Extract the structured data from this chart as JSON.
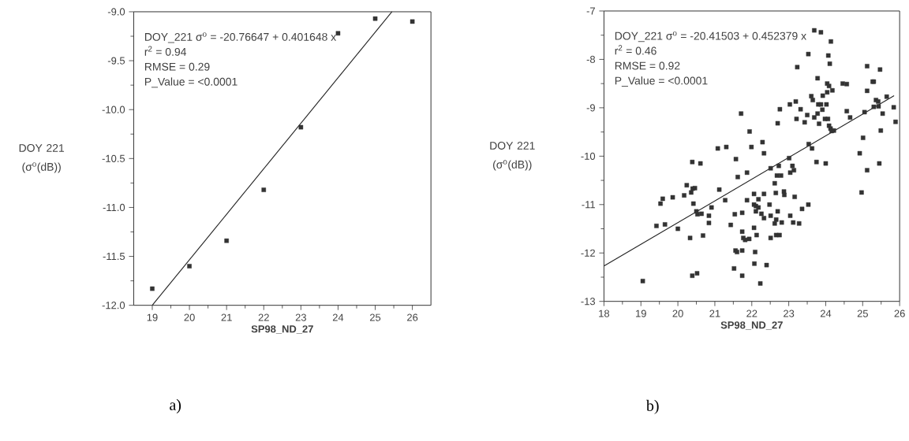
{
  "chart_data": [
    {
      "type": "scatter",
      "title": "a)",
      "xlabel": "SP98_ND_27",
      "ylabel": "DOY 221 (σ$^{o}$(dB))",
      "xlim": [
        18.5,
        26.5
      ],
      "ylim": [
        -12.0,
        -9.0
      ],
      "xticks": [
        19,
        20,
        21,
        22,
        23,
        24,
        25,
        26
      ],
      "yticks": [
        {
          "value": -12.0,
          "label": "-12.0"
        },
        {
          "value": -11.5,
          "label": "-11.5"
        },
        {
          "value": -11.0,
          "label": "-11.0"
        },
        {
          "value": -10.5,
          "label": "-10.5"
        },
        {
          "value": -10.0,
          "label": "-10.0"
        },
        {
          "value": -9.5,
          "label": "-9.5"
        },
        {
          "value": -9.0,
          "label": "-9.0"
        }
      ],
      "annotations": [
        "DOY_221 σ$^{o}$ = -20.76647 + 0.401648  x",
        "r$^{2}$ = 0.94",
        "RMSE = 0.29",
        "P_Value = <0.0001"
      ],
      "series": [
        {
          "marker": "square",
          "color": "#333333",
          "x": [
            19,
            20,
            21,
            22,
            23,
            24,
            25,
            26
          ],
          "values": [
            -11.83,
            -11.6,
            -11.34,
            -10.82,
            -10.18,
            -9.22,
            -9.07,
            -9.1
          ]
        },
        {
          "type": "line",
          "color": "#222222",
          "x": [
            19,
            25.45
          ],
          "values": [
            -12.0,
            -9.0
          ]
        }
      ]
    },
    {
      "type": "scatter",
      "title": "b)",
      "xlabel": "SP98_ND_27",
      "ylabel": "DOY 221 (σ$^{o}$(dB))",
      "xlim": [
        18,
        26
      ],
      "ylim": [
        -13,
        -7
      ],
      "xticks": [
        18,
        19,
        20,
        21,
        22,
        23,
        24,
        25,
        26
      ],
      "yticks": [
        -13,
        -12,
        -11,
        -10,
        -9,
        -8,
        -7
      ],
      "annotations": [
        "DOY_221 σ$^{o}$ = -20.41503 + 0.452379  x",
        "r$^{2}$ = 0.46",
        "RMSE = 0.92",
        "P_Value = <0.0001"
      ],
      "series": [
        {
          "marker": "square",
          "color": "#333333",
          "x": [
            19.05,
            19.42,
            19.53,
            19.59,
            19.65,
            19.86,
            20.0,
            20.17,
            20.24,
            20.33,
            20.36,
            20.39,
            20.39,
            20.4,
            20.42,
            20.46,
            20.5,
            20.52,
            20.53,
            20.61,
            20.64,
            20.68,
            20.84,
            20.84,
            20.91,
            21.08,
            21.12,
            21.28,
            21.31,
            21.43,
            21.52,
            21.54,
            21.56,
            21.57,
            21.6,
            21.62,
            21.71,
            21.74,
            21.74,
            21.77,
            21.74,
            21.74,
            21.82,
            21.87,
            21.87,
            21.93,
            21.94,
            21.99,
            22.06,
            22.06,
            22.06,
            22.07,
            22.09,
            22.11,
            22.11,
            22.13,
            22.18,
            22.18,
            22.23,
            22.26,
            22.29,
            22.33,
            22.33,
            22.33,
            22.4,
            22.48,
            22.51,
            22.51,
            22.51,
            22.62,
            22.62,
            22.65,
            22.66,
            22.66,
            22.68,
            22.7,
            22.7,
            22.73,
            22.75,
            22.76,
            22.79,
            22.81,
            22.87,
            22.88,
            23.01,
            23.03,
            23.04,
            23.04,
            23.1,
            23.12,
            23.14,
            23.16,
            23.19,
            23.21,
            23.23,
            23.28,
            23.32,
            23.36,
            23.43,
            23.5,
            23.53,
            23.53,
            23.54,
            23.61,
            23.63,
            23.65,
            23.69,
            23.69,
            23.75,
            23.78,
            23.78,
            23.8,
            23.82,
            23.87,
            23.87,
            23.91,
            23.92,
            23.98,
            24.0,
            24.02,
            24.04,
            24.04,
            24.06,
            24.07,
            24.09,
            24.09,
            24.11,
            24.13,
            24.14,
            24.16,
            24.18,
            24.22,
            24.46,
            24.57,
            24.57,
            24.66,
            24.92,
            24.97,
            25.01,
            25.05,
            25.12,
            25.12,
            25.12,
            25.27,
            25.3,
            25.3,
            25.36,
            25.42,
            25.43,
            25.45,
            25.47,
            25.49,
            25.54,
            25.65,
            25.84,
            25.89
          ],
          "values": [
            -12.58,
            -11.44,
            -10.98,
            -10.88,
            -11.41,
            -10.85,
            -11.5,
            -10.81,
            -10.6,
            -11.69,
            -10.75,
            -12.47,
            -10.12,
            -10.67,
            -10.98,
            -10.66,
            -11.14,
            -12.42,
            -11.2,
            -10.15,
            -11.19,
            -11.64,
            -11.23,
            -11.38,
            -11.06,
            -9.84,
            -10.69,
            -10.91,
            -9.81,
            -11.42,
            -12.32,
            -11.2,
            -11.95,
            -10.06,
            -11.98,
            -10.43,
            -9.12,
            -11.17,
            -11.56,
            -11.69,
            -11.95,
            -12.47,
            -11.73,
            -10.34,
            -10.91,
            -11.71,
            -9.49,
            -9.81,
            -10.78,
            -11.0,
            -11.48,
            -12.22,
            -11.98,
            -11.03,
            -11.14,
            -11.63,
            -10.89,
            -11.06,
            -12.63,
            -11.19,
            -9.71,
            -9.94,
            -10.78,
            -11.28,
            -12.25,
            -11.0,
            -10.25,
            -11.23,
            -11.69,
            -10.56,
            -11.39,
            -10.76,
            -11.31,
            -11.63,
            -10.4,
            -11.14,
            -9.32,
            -10.2,
            -11.63,
            -9.03,
            -10.4,
            -11.37,
            -10.73,
            -10.8,
            -10.04,
            -8.93,
            -10.34,
            -11.23,
            -10.2,
            -11.37,
            -10.29,
            -10.84,
            -8.87,
            -9.23,
            -8.16,
            -11.39,
            -9.03,
            -11.09,
            -9.3,
            -9.15,
            -7.89,
            -11.0,
            -9.75,
            -8.76,
            -9.84,
            -8.84,
            -7.4,
            -9.2,
            -10.12,
            -8.39,
            -9.12,
            -8.93,
            -9.33,
            -7.44,
            -8.93,
            -9.04,
            -8.75,
            -9.23,
            -10.15,
            -8.93,
            -8.5,
            -8.68,
            -9.23,
            -7.92,
            -9.37,
            -8.55,
            -8.09,
            -9.43,
            -7.63,
            -9.48,
            -8.64,
            -9.47,
            -8.5,
            -8.51,
            -9.07,
            -9.2,
            -9.94,
            -10.75,
            -9.62,
            -9.09,
            -8.14,
            -8.65,
            -10.29,
            -8.46,
            -8.98,
            -8.46,
            -8.84,
            -8.87,
            -8.97,
            -10.15,
            -8.21,
            -9.47,
            -9.12,
            -8.77,
            -8.99,
            -9.29
          ]
        },
        {
          "type": "line",
          "color": "#222222",
          "x": [
            18,
            25.85
          ],
          "values": [
            -12.27,
            -8.75
          ]
        }
      ]
    }
  ]
}
